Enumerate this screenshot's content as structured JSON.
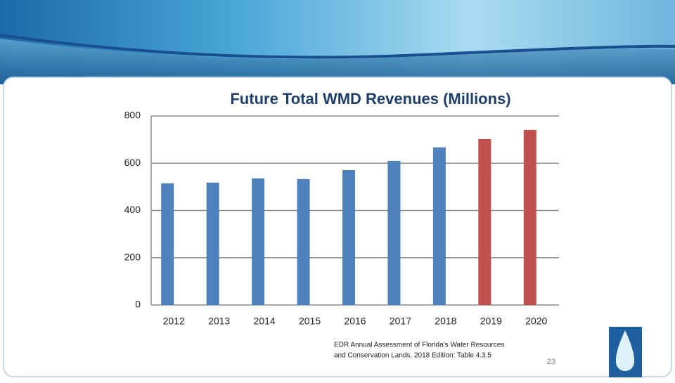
{
  "chart_data": {
    "type": "bar",
    "title": "Future Total WMD Revenues (Millions)",
    "categories": [
      "2012",
      "2013",
      "2014",
      "2015",
      "2016",
      "2017",
      "2018",
      "2019",
      "2020"
    ],
    "values": [
      515,
      518,
      536,
      533,
      571,
      610,
      667,
      702,
      741
    ],
    "colors": [
      "#4f81bd",
      "#4f81bd",
      "#4f81bd",
      "#4f81bd",
      "#4f81bd",
      "#4f81bd",
      "#4f81bd",
      "#c0504d",
      "#c0504d"
    ],
    "ylim": [
      0,
      800
    ],
    "yticks": [
      0,
      200,
      400,
      600,
      800
    ],
    "grid": true
  },
  "footnote": [
    "EDR Annual Assessment of Florida’s Water Resources",
    "and Conservation Lands,  2018 Edition: Table 4.3.5"
  ],
  "page_number": "23"
}
